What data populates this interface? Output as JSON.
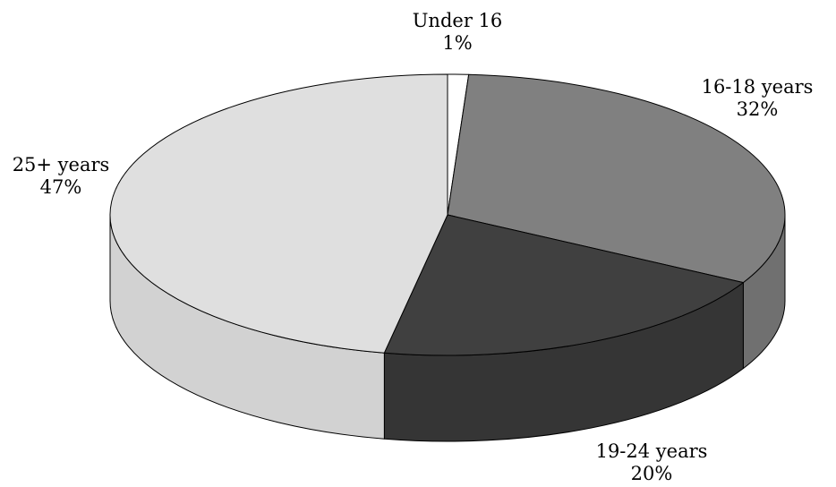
{
  "chart_data": {
    "type": "pie",
    "style": "3d",
    "title": "",
    "slices": [
      {
        "label": "Under 16",
        "percent_label": "1%",
        "value": 1,
        "color": "#ffffff"
      },
      {
        "label": "16-18 years",
        "percent_label": "32%",
        "value": 32,
        "color": "#808080"
      },
      {
        "label": "19-24 years",
        "percent_label": "20%",
        "value": 20,
        "color": "#404040"
      },
      {
        "label": "25+ years",
        "percent_label": "47%",
        "value": 47,
        "color": "#dfdfdf"
      }
    ],
    "side_colors": [
      "#f2f2f2",
      "#707070",
      "#353535",
      "#d2d2d2"
    ],
    "outline_color": "#000000"
  }
}
